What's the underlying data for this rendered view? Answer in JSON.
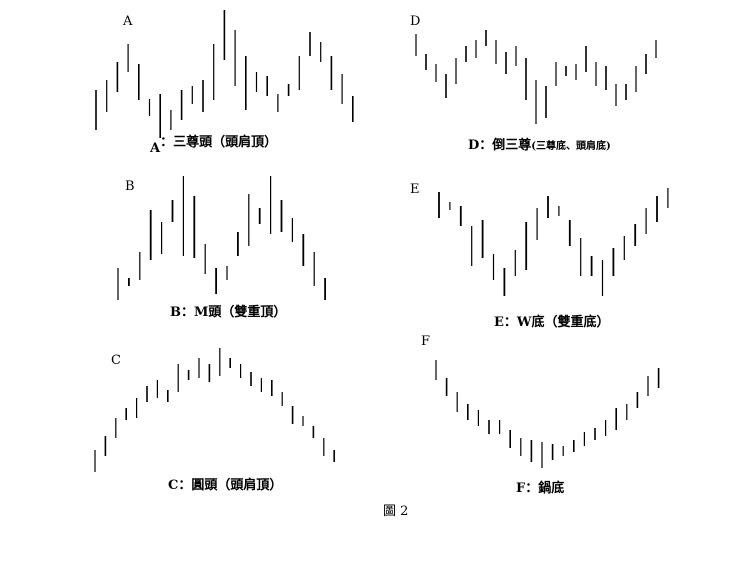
{
  "figure_label": "圖 2",
  "chart_data": [
    {
      "type": "bar",
      "letter": "A",
      "caption_letter": "A",
      "caption": "：三尊頭（頭肩頂）",
      "caption_note": "",
      "bars": [
        [
          90,
          130
        ],
        [
          80,
          112
        ],
        [
          62,
          92
        ],
        [
          44,
          72
        ],
        [
          64,
          100
        ],
        [
          99,
          116
        ],
        [
          94,
          138
        ],
        [
          110,
          130
        ],
        [
          90,
          120
        ],
        [
          86,
          104
        ],
        [
          80,
          112
        ],
        [
          44,
          100
        ],
        [
          10,
          60
        ],
        [
          30,
          86
        ],
        [
          56,
          110
        ],
        [
          72,
          92
        ],
        [
          76,
          96
        ],
        [
          94,
          112
        ],
        [
          84,
          96
        ],
        [
          56,
          90
        ],
        [
          32,
          56
        ],
        [
          42,
          62
        ],
        [
          56,
          90
        ],
        [
          74,
          104
        ],
        [
          96,
          122
        ]
      ]
    },
    {
      "type": "bar",
      "letter": "D",
      "caption_letter": "D",
      "caption": "：倒三尊",
      "caption_note": "(三尊底、頭肩底)",
      "bars": [
        [
          34,
          56
        ],
        [
          54,
          70
        ],
        [
          64,
          82
        ],
        [
          74,
          98
        ],
        [
          58,
          84
        ],
        [
          46,
          62
        ],
        [
          40,
          58
        ],
        [
          30,
          46
        ],
        [
          40,
          64
        ],
        [
          52,
          74
        ],
        [
          46,
          66
        ],
        [
          58,
          100
        ],
        [
          80,
          124
        ],
        [
          86,
          118
        ],
        [
          62,
          86
        ],
        [
          66,
          76
        ],
        [
          64,
          80
        ],
        [
          46,
          72
        ],
        [
          62,
          86
        ],
        [
          66,
          90
        ],
        [
          84,
          106
        ],
        [
          84,
          100
        ],
        [
          66,
          92
        ],
        [
          54,
          74
        ],
        [
          40,
          58
        ]
      ]
    },
    {
      "type": "bar",
      "letter": "B",
      "caption_letter": "B",
      "caption": "：M頭（雙重頂）",
      "caption_note": "",
      "bars": [
        [
          268,
          300
        ],
        [
          278,
          286
        ],
        [
          252,
          280
        ],
        [
          210,
          260
        ],
        [
          222,
          254
        ],
        [
          200,
          222
        ],
        [
          176,
          256
        ],
        [
          196,
          258
        ],
        [
          244,
          274
        ],
        [
          268,
          294
        ],
        [
          266,
          280
        ],
        [
          232,
          256
        ],
        [
          194,
          246
        ],
        [
          208,
          224
        ],
        [
          176,
          234
        ],
        [
          200,
          232
        ],
        [
          218,
          242
        ],
        [
          234,
          266
        ],
        [
          252,
          286
        ],
        [
          278,
          300
        ]
      ]
    },
    {
      "type": "bar",
      "letter": "E",
      "caption_letter": "E",
      "caption": "：W底（雙重底）",
      "caption_note": "",
      "bars": [
        [
          192,
          218
        ],
        [
          202,
          210
        ],
        [
          206,
          226
        ],
        [
          226,
          266
        ],
        [
          220,
          258
        ],
        [
          254,
          280
        ],
        [
          268,
          296
        ],
        [
          250,
          276
        ],
        [
          222,
          270
        ],
        [
          208,
          240
        ],
        [
          196,
          218
        ],
        [
          206,
          216
        ],
        [
          220,
          246
        ],
        [
          238,
          276
        ],
        [
          256,
          276
        ],
        [
          260,
          296
        ],
        [
          248,
          276
        ],
        [
          236,
          260
        ],
        [
          224,
          246
        ],
        [
          208,
          234
        ],
        [
          196,
          222
        ],
        [
          188,
          208
        ]
      ]
    },
    {
      "type": "bar",
      "letter": "C",
      "caption_letter": "C",
      "caption": "：圓頭（頭肩頂）",
      "caption_note": "",
      "bars": [
        [
          450,
          472
        ],
        [
          436,
          456
        ],
        [
          418,
          438
        ],
        [
          408,
          420
        ],
        [
          398,
          418
        ],
        [
          386,
          402
        ],
        [
          380,
          398
        ],
        [
          390,
          402
        ],
        [
          364,
          392
        ],
        [
          370,
          380
        ],
        [
          358,
          378
        ],
        [
          364,
          382
        ],
        [
          348,
          376
        ],
        [
          358,
          368
        ],
        [
          364,
          378
        ],
        [
          372,
          386
        ],
        [
          378,
          392
        ],
        [
          380,
          396
        ],
        [
          392,
          406
        ],
        [
          406,
          424
        ],
        [
          416,
          426
        ],
        [
          426,
          438
        ],
        [
          438,
          456
        ],
        [
          450,
          462
        ]
      ]
    },
    {
      "type": "bar",
      "letter": "F",
      "caption_letter": "F",
      "caption": "：鍋底",
      "caption_note": "",
      "bars": [
        [
          360,
          380
        ],
        [
          378,
          396
        ],
        [
          392,
          412
        ],
        [
          404,
          420
        ],
        [
          410,
          426
        ],
        [
          420,
          434
        ],
        [
          420,
          434
        ],
        [
          430,
          448
        ],
        [
          438,
          456
        ],
        [
          440,
          462
        ],
        [
          442,
          468
        ],
        [
          444,
          460
        ],
        [
          446,
          456
        ],
        [
          440,
          452
        ],
        [
          432,
          446
        ],
        [
          428,
          440
        ],
        [
          420,
          436
        ],
        [
          408,
          430
        ],
        [
          404,
          420
        ],
        [
          392,
          408
        ],
        [
          376,
          396
        ],
        [
          368,
          388
        ]
      ]
    }
  ]
}
